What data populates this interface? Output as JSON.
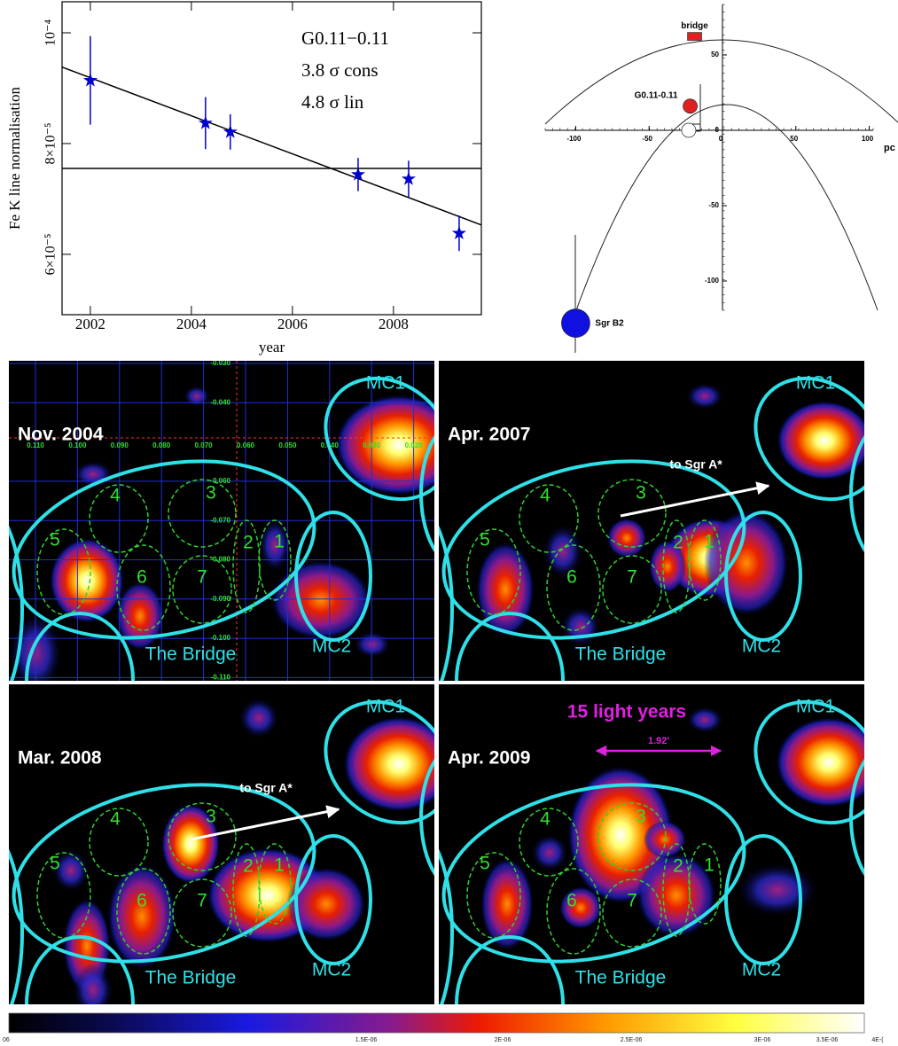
{
  "chart_data": [
    {
      "type": "errorbar",
      "x_label": "year",
      "y_label": "Fe K line normalisation",
      "annotations": [
        "G0.11−0.11",
        "3.8 σ cons",
        "4.8 σ lin"
      ],
      "x": [
        2002.0,
        2004.28,
        2004.77,
        2007.3,
        2008.3,
        2009.3
      ],
      "values": [
        9.14e-05,
        8.37e-05,
        8.21e-05,
        7.44e-05,
        7.36e-05,
        6.38e-05
      ],
      "errors": [
        8e-06,
        4.7e-06,
        3.2e-06,
        3e-06,
        3.3e-06,
        3.2e-06
      ],
      "color": "#0000cc",
      "constant_fit": 7.55e-05,
      "linear_fit": {
        "x": [
          2001.44,
          2009.74
        ],
        "values": [
          9.38e-05,
          6.53e-05
        ]
      },
      "xlim": [
        2001.44,
        2009.74
      ],
      "ylim": [
        4.91e-05,
        0.0001056
      ],
      "xticks": [
        2002,
        2004,
        2006,
        2008
      ],
      "yticks": [
        {
          "value": 6e-05,
          "label": "6×10⁻⁵"
        },
        {
          "value": 8e-05,
          "label": "8×10⁻⁵"
        },
        {
          "value": 0.0001,
          "label": "10⁻⁴"
        }
      ]
    },
    {
      "type": "scatter",
      "x_unit": "pc",
      "labels": [
        "bridge",
        "G0.11-0.11",
        null,
        "Sgr B2"
      ],
      "x": [
        -19,
        -22,
        -23,
        -100
      ],
      "values": [
        62,
        16,
        0,
        -128
      ],
      "colors": [
        "#e02020",
        "#e02020",
        "#ffffff",
        "#1010e0"
      ],
      "xlim": [
        -120.8,
        102.7
      ],
      "ylim": [
        -119.4,
        83.5
      ],
      "xticks": [
        -100,
        -50,
        0,
        50,
        100
      ],
      "yticks": [
        -100,
        -50,
        0,
        50
      ]
    }
  ],
  "panels": [
    {
      "title": "Nov. 2004",
      "mc1": "MC1",
      "mc2": "MC2",
      "bridge": "The Bridge",
      "regions": [
        "1",
        "2",
        "3",
        "4",
        "5",
        "6",
        "7"
      ],
      "grid_x_labels": [
        "0.110",
        "0.100",
        "0.090",
        "0.080",
        "0.070",
        "0.060",
        "0.050",
        "0.040",
        "0.030",
        "0.020"
      ],
      "grid_y_labels": [
        "-0.030",
        "-0.040",
        "-0.060",
        "-0.070",
        "-0.080",
        "-0.090",
        "-0.100",
        "-0.110"
      ]
    },
    {
      "title": "Apr. 2007",
      "mc1": "MC1",
      "mc2": "MC2",
      "bridge": "The Bridge",
      "regions": [
        "1",
        "2",
        "3",
        "4",
        "5",
        "6",
        "7"
      ],
      "arrow_label": "to Sgr A*"
    },
    {
      "title": "Mar. 2008",
      "mc1": "MC1",
      "mc2": "MC2",
      "bridge": "The Bridge",
      "regions": [
        "1",
        "2",
        "3",
        "4",
        "5",
        "6",
        "7"
      ],
      "arrow_label": "to Sgr A*"
    },
    {
      "title": "Apr. 2009",
      "mc1": "MC1",
      "mc2": "MC2",
      "bridge": "The Bridge",
      "regions": [
        "1",
        "2",
        "3",
        "4",
        "5",
        "6",
        "7"
      ],
      "scale_label": "15 light years",
      "scale_size": "1.92'"
    }
  ],
  "colorbar": {
    "labels": [
      "06",
      "1.5E-06",
      "2E-06",
      "2.5E-06",
      "3E-06",
      "3.5E-06",
      "4E-("
    ]
  }
}
